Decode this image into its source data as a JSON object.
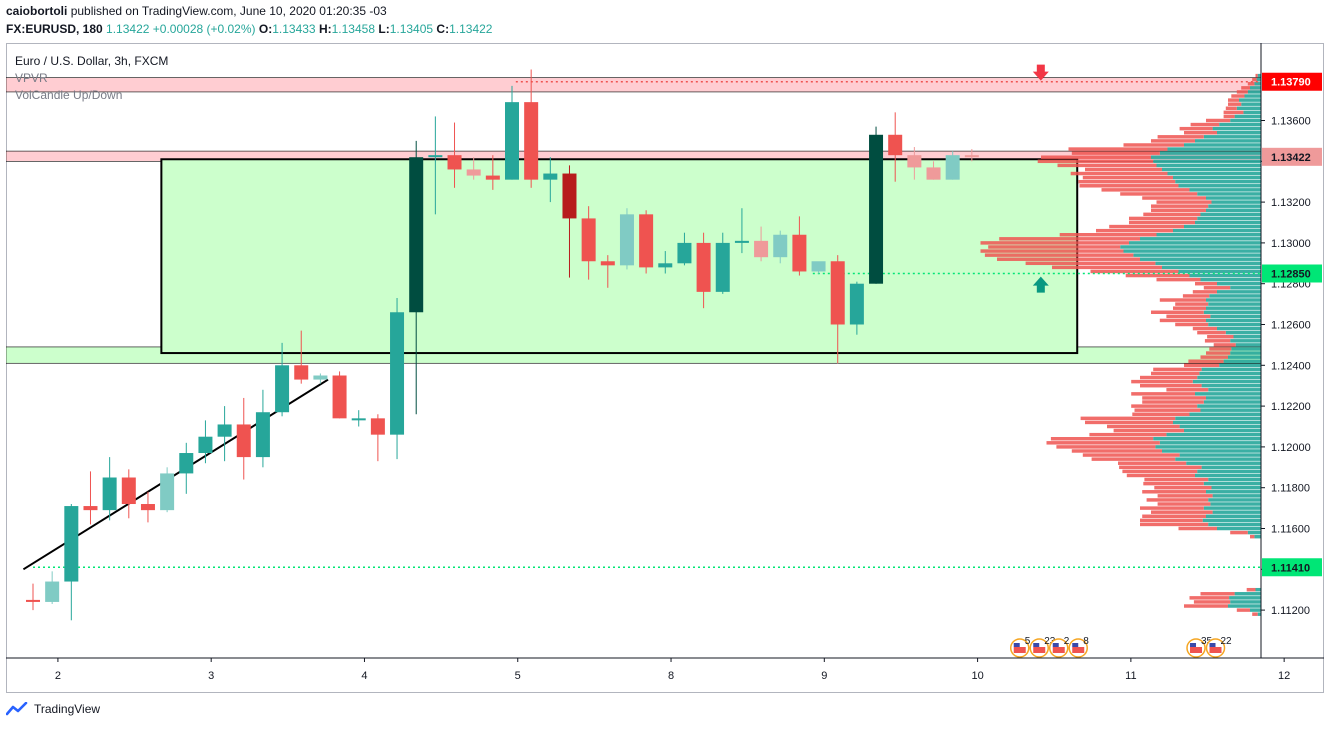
{
  "header": {
    "author": "caiobortoli",
    "published": "published on TradingView.com, June 10, 2020 01:20:35 -03",
    "symbol": "FX:EURUSD, 180",
    "last": "1.13422",
    "change": "+0.00028 (+0.02%)",
    "open_label": "O:",
    "open": "1.13433",
    "high_label": "H:",
    "high": "1.13458",
    "low_label": "L:",
    "low": "1.13405",
    "close_label": "C:",
    "close": "1.13422"
  },
  "legend": {
    "title": "Euro / U.S. Dollar, 3h, FXCM",
    "indicators": [
      "VPVR",
      "VolCandle Up/Down"
    ]
  },
  "footer": {
    "brand": "TradingView"
  },
  "colors": {
    "up": "#26a69a",
    "down": "#ef5350",
    "up_light": "#80cbc4",
    "down_light": "#ef9a9a",
    "up_dark": "#004d40",
    "down_dark": "#b71c1c",
    "zone_fill": "#ccffcc",
    "resistance_fill": "#ffcdd2",
    "dotted_red": "#ef5350",
    "dotted_green": "#00e676"
  },
  "chart_data": {
    "type": "candlestick",
    "price_scale": {
      "min": 1.1106,
      "max": 1.1392,
      "ticks": [
        "1.11200",
        "1.11400",
        "1.11600",
        "1.11800",
        "1.12000",
        "1.12200",
        "1.12400",
        "1.12600",
        "1.12800",
        "1.13000",
        "1.13200",
        "1.13400",
        "1.13600"
      ]
    },
    "x_ticks": [
      {
        "label": "2",
        "i": 1.3
      },
      {
        "label": "3",
        "i": 9.3
      },
      {
        "label": "4",
        "i": 17.3
      },
      {
        "label": "5",
        "i": 25.3
      },
      {
        "label": "8",
        "i": 33.3
      },
      {
        "label": "9",
        "i": 41.3
      },
      {
        "label": "10",
        "i": 49.3
      },
      {
        "label": "11",
        "i": 57.3
      },
      {
        "label": "12",
        "i": 65.3
      }
    ],
    "candles": [
      {
        "o": 1.1125,
        "h": 1.1133,
        "l": 1.112,
        "c": 1.1124,
        "s": "down"
      },
      {
        "o": 1.1124,
        "h": 1.1139,
        "l": 1.1123,
        "c": 1.1134,
        "s": "upl"
      },
      {
        "o": 1.1134,
        "h": 1.1172,
        "l": 1.1115,
        "c": 1.1171,
        "s": "up"
      },
      {
        "o": 1.1171,
        "h": 1.1188,
        "l": 1.1162,
        "c": 1.1169,
        "s": "down"
      },
      {
        "o": 1.1169,
        "h": 1.1195,
        "l": 1.1164,
        "c": 1.1185,
        "s": "up"
      },
      {
        "o": 1.1185,
        "h": 1.1189,
        "l": 1.1165,
        "c": 1.1172,
        "s": "down"
      },
      {
        "o": 1.1172,
        "h": 1.1178,
        "l": 1.1163,
        "c": 1.1169,
        "s": "down"
      },
      {
        "o": 1.1169,
        "h": 1.119,
        "l": 1.1168,
        "c": 1.1187,
        "s": "upl"
      },
      {
        "o": 1.1187,
        "h": 1.1202,
        "l": 1.1177,
        "c": 1.1197,
        "s": "up"
      },
      {
        "o": 1.1197,
        "h": 1.1213,
        "l": 1.1192,
        "c": 1.1205,
        "s": "up"
      },
      {
        "o": 1.1205,
        "h": 1.122,
        "l": 1.1193,
        "c": 1.1211,
        "s": "up"
      },
      {
        "o": 1.1211,
        "h": 1.1224,
        "l": 1.1184,
        "c": 1.1195,
        "s": "down"
      },
      {
        "o": 1.1195,
        "h": 1.1228,
        "l": 1.119,
        "c": 1.1217,
        "s": "up"
      },
      {
        "o": 1.1217,
        "h": 1.1251,
        "l": 1.1215,
        "c": 1.124,
        "s": "up"
      },
      {
        "o": 1.124,
        "h": 1.1257,
        "l": 1.1231,
        "c": 1.1233,
        "s": "down"
      },
      {
        "o": 1.1233,
        "h": 1.1236,
        "l": 1.1231,
        "c": 1.1235,
        "s": "upl"
      },
      {
        "o": 1.1235,
        "h": 1.1237,
        "l": 1.1214,
        "c": 1.1214,
        "s": "down"
      },
      {
        "o": 1.1214,
        "h": 1.1218,
        "l": 1.121,
        "c": 1.1214,
        "s": "up"
      },
      {
        "o": 1.1214,
        "h": 1.1216,
        "l": 1.1193,
        "c": 1.1206,
        "s": "down"
      },
      {
        "o": 1.1206,
        "h": 1.1273,
        "l": 1.1194,
        "c": 1.1266,
        "s": "up"
      },
      {
        "o": 1.1266,
        "h": 1.135,
        "l": 1.1216,
        "c": 1.1342,
        "s": "updk"
      },
      {
        "o": 1.1342,
        "h": 1.1362,
        "l": 1.1314,
        "c": 1.1343,
        "s": "up"
      },
      {
        "o": 1.1343,
        "h": 1.1359,
        "l": 1.1327,
        "c": 1.1336,
        "s": "down"
      },
      {
        "o": 1.1336,
        "h": 1.1342,
        "l": 1.1331,
        "c": 1.1333,
        "s": "downl"
      },
      {
        "o": 1.1333,
        "h": 1.1343,
        "l": 1.1326,
        "c": 1.1331,
        "s": "down"
      },
      {
        "o": 1.1331,
        "h": 1.1377,
        "l": 1.1331,
        "c": 1.1369,
        "s": "up"
      },
      {
        "o": 1.1369,
        "h": 1.1385,
        "l": 1.1327,
        "c": 1.1331,
        "s": "down"
      },
      {
        "o": 1.1331,
        "h": 1.1342,
        "l": 1.132,
        "c": 1.1334,
        "s": "up"
      },
      {
        "o": 1.1334,
        "h": 1.1338,
        "l": 1.1283,
        "c": 1.1312,
        "s": "downdk"
      },
      {
        "o": 1.1312,
        "h": 1.1318,
        "l": 1.1282,
        "c": 1.1291,
        "s": "down"
      },
      {
        "o": 1.1291,
        "h": 1.1294,
        "l": 1.1278,
        "c": 1.1289,
        "s": "down"
      },
      {
        "o": 1.1289,
        "h": 1.1317,
        "l": 1.1287,
        "c": 1.1314,
        "s": "upl"
      },
      {
        "o": 1.1314,
        "h": 1.1316,
        "l": 1.1285,
        "c": 1.1288,
        "s": "down"
      },
      {
        "o": 1.1288,
        "h": 1.1296,
        "l": 1.1285,
        "c": 1.129,
        "s": "up"
      },
      {
        "o": 1.129,
        "h": 1.1305,
        "l": 1.1289,
        "c": 1.13,
        "s": "up"
      },
      {
        "o": 1.13,
        "h": 1.1305,
        "l": 1.1268,
        "c": 1.1276,
        "s": "down"
      },
      {
        "o": 1.1276,
        "h": 1.1305,
        "l": 1.1275,
        "c": 1.13,
        "s": "up"
      },
      {
        "o": 1.13,
        "h": 1.1317,
        "l": 1.1295,
        "c": 1.1301,
        "s": "up"
      },
      {
        "o": 1.1301,
        "h": 1.1308,
        "l": 1.1291,
        "c": 1.1293,
        "s": "downl"
      },
      {
        "o": 1.1293,
        "h": 1.1306,
        "l": 1.129,
        "c": 1.1304,
        "s": "upl"
      },
      {
        "o": 1.1304,
        "h": 1.1313,
        "l": 1.1284,
        "c": 1.1286,
        "s": "down"
      },
      {
        "o": 1.1286,
        "h": 1.129,
        "l": 1.1285,
        "c": 1.1291,
        "s": "upl"
      },
      {
        "o": 1.1291,
        "h": 1.1294,
        "l": 1.1241,
        "c": 1.126,
        "s": "down"
      },
      {
        "o": 1.126,
        "h": 1.1281,
        "l": 1.1255,
        "c": 1.128,
        "s": "up"
      },
      {
        "o": 1.128,
        "h": 1.1357,
        "l": 1.128,
        "c": 1.1353,
        "s": "updk"
      },
      {
        "o": 1.1353,
        "h": 1.1364,
        "l": 1.133,
        "c": 1.1343,
        "s": "down"
      },
      {
        "o": 1.1343,
        "h": 1.1347,
        "l": 1.1331,
        "c": 1.1337,
        "s": "downl"
      },
      {
        "o": 1.1337,
        "h": 1.134,
        "l": 1.1331,
        "c": 1.1331,
        "s": "downl"
      },
      {
        "o": 1.1331,
        "h": 1.1345,
        "l": 1.1331,
        "c": 1.1343,
        "s": "upl"
      },
      {
        "o": 1.1343,
        "h": 1.1346,
        "l": 1.134,
        "c": 1.1342,
        "s": "downl"
      }
    ],
    "price_tags": [
      {
        "value": 1.1379,
        "label": "1.13790",
        "bg": "#ff0000",
        "fg": "#ffffff"
      },
      {
        "value": 1.13422,
        "label": "1.13422",
        "bg": "#ef9a9a",
        "fg": "#131722"
      },
      {
        "value": 1.1285,
        "label": "1.12850",
        "bg": "#00e676",
        "fg": "#131722"
      },
      {
        "value": 1.1141,
        "label": "1.11410",
        "bg": "#00e676",
        "fg": "#131722"
      }
    ],
    "zone": {
      "top": 1.1341,
      "bottom": 1.1246,
      "start_i": 6.7,
      "end_i": 54.5
    },
    "bands": [
      {
        "top": 1.1381,
        "bottom": 1.1374,
        "color": "#ffcdd2"
      },
      {
        "top": 1.1345,
        "bottom": 1.134,
        "color": "#ffcdd2"
      },
      {
        "top": 1.1249,
        "bottom": 1.1241,
        "color": "#ccffcc"
      }
    ],
    "dotted_lines": [
      {
        "value": 1.1379,
        "start_i": 25.2,
        "color": "#ef5350"
      },
      {
        "value": 1.1285,
        "start_i": 40.7,
        "color": "#00e676"
      },
      {
        "value": 1.1141,
        "start_i": 0,
        "color": "#00e676"
      }
    ],
    "trendline": [
      {
        "i": -0.5,
        "p": 1.114
      },
      {
        "i": 15.4,
        "p": 1.1233
      }
    ],
    "arrows": [
      {
        "i": 52.6,
        "p": 1.1382,
        "dir": "down",
        "color": "#f23645"
      },
      {
        "i": 52.6,
        "p": 1.1281,
        "dir": "up",
        "color": "#089981"
      }
    ],
    "event_groups": [
      {
        "i": 51.5,
        "labels": [
          "5",
          "23",
          "2",
          "8"
        ]
      },
      {
        "i": 60.7,
        "labels": [
          "35",
          "22"
        ]
      }
    ],
    "volume_profile": [
      {
        "p": 1.1118,
        "buy": 3,
        "sell": 5
      },
      {
        "p": 1.112,
        "buy": 10,
        "sell": 12
      },
      {
        "p": 1.1122,
        "buy": 30,
        "sell": 40
      },
      {
        "p": 1.1124,
        "buy": 28,
        "sell": 33
      },
      {
        "p": 1.1126,
        "buy": 29,
        "sell": 36
      },
      {
        "p": 1.1128,
        "buy": 24,
        "sell": 31
      },
      {
        "p": 1.113,
        "buy": 5,
        "sell": 8
      },
      {
        "p": 1.1156,
        "buy": 6,
        "sell": 4
      },
      {
        "p": 1.1158,
        "buy": 12,
        "sell": 16
      },
      {
        "p": 1.116,
        "buy": 40,
        "sell": 35
      },
      {
        "p": 1.1162,
        "buy": 48,
        "sell": 62
      },
      {
        "p": 1.1164,
        "buy": 53,
        "sell": 57
      },
      {
        "p": 1.1166,
        "buy": 50,
        "sell": 58
      },
      {
        "p": 1.1168,
        "buy": 44,
        "sell": 56
      },
      {
        "p": 1.117,
        "buy": 52,
        "sell": 58
      },
      {
        "p": 1.1172,
        "buy": 46,
        "sell": 48
      },
      {
        "p": 1.1174,
        "buy": 48,
        "sell": 56
      },
      {
        "p": 1.1176,
        "buy": 44,
        "sell": 50
      },
      {
        "p": 1.1178,
        "buy": 50,
        "sell": 58
      },
      {
        "p": 1.118,
        "buy": 45,
        "sell": 52
      },
      {
        "p": 1.1182,
        "buy": 52,
        "sell": 55
      },
      {
        "p": 1.1184,
        "buy": 48,
        "sell": 58
      },
      {
        "p": 1.1186,
        "buy": 60,
        "sell": 62
      },
      {
        "p": 1.1188,
        "buy": 58,
        "sell": 68
      },
      {
        "p": 1.119,
        "buy": 54,
        "sell": 75
      },
      {
        "p": 1.1192,
        "buy": 68,
        "sell": 62
      },
      {
        "p": 1.1194,
        "buy": 78,
        "sell": 76
      },
      {
        "p": 1.1196,
        "buy": 74,
        "sell": 88
      },
      {
        "p": 1.1198,
        "buy": 90,
        "sell": 82
      },
      {
        "p": 1.12,
        "buy": 96,
        "sell": 90
      },
      {
        "p": 1.1202,
        "buy": 92,
        "sell": 103
      },
      {
        "p": 1.1204,
        "buy": 98,
        "sell": 93
      },
      {
        "p": 1.1206,
        "buy": 86,
        "sell": 70
      },
      {
        "p": 1.1208,
        "buy": 70,
        "sell": 64
      },
      {
        "p": 1.121,
        "buy": 74,
        "sell": 66
      },
      {
        "p": 1.1212,
        "buy": 80,
        "sell": 80
      },
      {
        "p": 1.1214,
        "buy": 78,
        "sell": 86
      },
      {
        "p": 1.1216,
        "buy": 65,
        "sell": 52
      },
      {
        "p": 1.1218,
        "buy": 55,
        "sell": 60
      },
      {
        "p": 1.122,
        "buy": 58,
        "sell": 60
      },
      {
        "p": 1.1222,
        "buy": 52,
        "sell": 56
      },
      {
        "p": 1.1224,
        "buy": 50,
        "sell": 58
      },
      {
        "p": 1.1226,
        "buy": 60,
        "sell": 58
      },
      {
        "p": 1.1228,
        "buy": 48,
        "sell": 38
      },
      {
        "p": 1.123,
        "buy": 54,
        "sell": 56
      },
      {
        "p": 1.1232,
        "buy": 62,
        "sell": 56
      },
      {
        "p": 1.1234,
        "buy": 58,
        "sell": 52
      },
      {
        "p": 1.1236,
        "buy": 56,
        "sell": 44
      },
      {
        "p": 1.1238,
        "buy": 54,
        "sell": 44
      },
      {
        "p": 1.124,
        "buy": 38,
        "sell": 32
      },
      {
        "p": 1.1242,
        "buy": 34,
        "sell": 32
      },
      {
        "p": 1.1244,
        "buy": 30,
        "sell": 25
      },
      {
        "p": 1.1246,
        "buy": 28,
        "sell": 22
      },
      {
        "p": 1.1248,
        "buy": 27,
        "sell": 20
      },
      {
        "p": 1.125,
        "buy": 23,
        "sell": 20
      },
      {
        "p": 1.1252,
        "buy": 28,
        "sell": 23
      },
      {
        "p": 1.1254,
        "buy": 25,
        "sell": 24
      },
      {
        "p": 1.1256,
        "buy": 32,
        "sell": 26
      },
      {
        "p": 1.1258,
        "buy": 40,
        "sell": 22
      },
      {
        "p": 1.126,
        "buy": 48,
        "sell": 30
      },
      {
        "p": 1.1262,
        "buy": 50,
        "sell": 42
      },
      {
        "p": 1.1264,
        "buy": 46,
        "sell": 40
      },
      {
        "p": 1.1266,
        "buy": 52,
        "sell": 48
      },
      {
        "p": 1.1268,
        "buy": 50,
        "sell": 30
      },
      {
        "p": 1.127,
        "buy": 48,
        "sell": 30
      },
      {
        "p": 1.1272,
        "buy": 50,
        "sell": 42
      },
      {
        "p": 1.1274,
        "buy": 47,
        "sell": 24
      },
      {
        "p": 1.1276,
        "buy": 40,
        "sell": 22
      },
      {
        "p": 1.1278,
        "buy": 28,
        "sell": 24
      },
      {
        "p": 1.128,
        "buy": 40,
        "sell": 20
      },
      {
        "p": 1.1282,
        "buy": 55,
        "sell": 40
      },
      {
        "p": 1.1284,
        "buy": 65,
        "sell": 58
      },
      {
        "p": 1.1286,
        "buy": 75,
        "sell": 80
      },
      {
        "p": 1.1288,
        "buy": 90,
        "sell": 100
      },
      {
        "p": 1.129,
        "buy": 96,
        "sell": 118
      },
      {
        "p": 1.1292,
        "buy": 110,
        "sell": 130
      },
      {
        "p": 1.1294,
        "buy": 116,
        "sell": 135
      },
      {
        "p": 1.1296,
        "buy": 125,
        "sell": 130
      },
      {
        "p": 1.1298,
        "buy": 128,
        "sell": 120
      },
      {
        "p": 1.13,
        "buy": 120,
        "sell": 135
      },
      {
        "p": 1.1302,
        "buy": 110,
        "sell": 128
      },
      {
        "p": 1.1304,
        "buy": 95,
        "sell": 88
      },
      {
        "p": 1.1306,
        "buy": 80,
        "sell": 70
      },
      {
        "p": 1.1308,
        "buy": 70,
        "sell": 68
      },
      {
        "p": 1.131,
        "buy": 60,
        "sell": 60
      },
      {
        "p": 1.1312,
        "buy": 58,
        "sell": 62
      },
      {
        "p": 1.1314,
        "buy": 55,
        "sell": 52
      },
      {
        "p": 1.1316,
        "buy": 50,
        "sell": 50
      },
      {
        "p": 1.1318,
        "buy": 48,
        "sell": 52
      },
      {
        "p": 1.132,
        "buy": 45,
        "sell": 50
      },
      {
        "p": 1.1322,
        "buy": 50,
        "sell": 58
      },
      {
        "p": 1.1324,
        "buy": 58,
        "sell": 70
      },
      {
        "p": 1.1326,
        "buy": 65,
        "sell": 80
      },
      {
        "p": 1.1328,
        "buy": 75,
        "sell": 90
      },
      {
        "p": 1.133,
        "buy": 78,
        "sell": 88
      },
      {
        "p": 1.1332,
        "buy": 80,
        "sell": 82
      },
      {
        "p": 1.1334,
        "buy": 85,
        "sell": 88
      },
      {
        "p": 1.1336,
        "buy": 90,
        "sell": 70
      },
      {
        "p": 1.1338,
        "buy": 95,
        "sell": 90
      },
      {
        "p": 1.134,
        "buy": 98,
        "sell": 105
      },
      {
        "p": 1.1342,
        "buy": 100,
        "sell": 100
      },
      {
        "p": 1.1344,
        "buy": 92,
        "sell": 80
      },
      {
        "p": 1.1346,
        "buy": 85,
        "sell": 90
      },
      {
        "p": 1.1348,
        "buy": 70,
        "sell": 55
      },
      {
        "p": 1.135,
        "buy": 60,
        "sell": 40
      },
      {
        "p": 1.1352,
        "buy": 52,
        "sell": 42
      },
      {
        "p": 1.1354,
        "buy": 40,
        "sell": 30
      },
      {
        "p": 1.1356,
        "buy": 44,
        "sell": 30
      },
      {
        "p": 1.1358,
        "buy": 38,
        "sell": 26
      },
      {
        "p": 1.136,
        "buy": 28,
        "sell": 22
      },
      {
        "p": 1.1362,
        "buy": 24,
        "sell": 10
      },
      {
        "p": 1.1364,
        "buy": 16,
        "sell": 18
      },
      {
        "p": 1.1366,
        "buy": 22,
        "sell": 10
      },
      {
        "p": 1.1368,
        "buy": 18,
        "sell": 12
      },
      {
        "p": 1.137,
        "buy": 20,
        "sell": 10
      },
      {
        "p": 1.1372,
        "buy": 15,
        "sell": 12
      },
      {
        "p": 1.1374,
        "buy": 12,
        "sell": 10
      },
      {
        "p": 1.1376,
        "buy": 10,
        "sell": 8
      },
      {
        "p": 1.1378,
        "buy": 6,
        "sell": 6
      },
      {
        "p": 1.138,
        "buy": 4,
        "sell": 4
      },
      {
        "p": 1.1382,
        "buy": 3,
        "sell": 2
      }
    ]
  }
}
